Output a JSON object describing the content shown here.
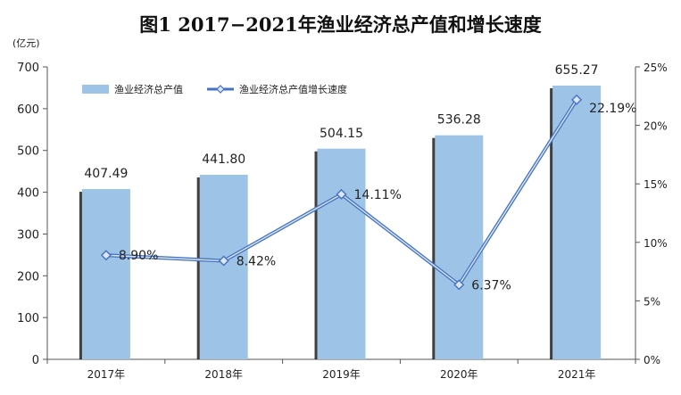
{
  "chart_data": {
    "type": "bar",
    "title": "图1 2017−2021年渔业经济总产值和增长速度",
    "unit_label": "(亿元)",
    "categories": [
      "2017年",
      "2018年",
      "2019年",
      "2020年",
      "2021年"
    ],
    "series": [
      {
        "name": "渔业经济总产值",
        "type": "bar",
        "axis": "left",
        "values": [
          407.49,
          441.8,
          504.15,
          536.28,
          655.27
        ],
        "labels": [
          "407.49",
          "441.80",
          "504.15",
          "536.28",
          "655.27"
        ],
        "color": "#9dc3e6"
      },
      {
        "name": "渔业经济总产值增长速度",
        "type": "line",
        "axis": "right",
        "values": [
          8.9,
          8.42,
          14.11,
          6.37,
          22.19
        ],
        "labels": [
          "8.90%",
          "8.42%",
          "14.11%",
          "6.37%",
          "22.19%"
        ],
        "color": "#4472c4"
      }
    ],
    "y_left": {
      "min": 0,
      "max": 700,
      "step": 100,
      "ticks": [
        "0",
        "100",
        "200",
        "300",
        "400",
        "500",
        "600",
        "700"
      ]
    },
    "y_right": {
      "min": 0,
      "max": 25,
      "step": 5,
      "ticks": [
        "0%",
        "5%",
        "10%",
        "15%",
        "20%",
        "25%"
      ]
    },
    "grid": false,
    "legend_position": "top-left"
  }
}
